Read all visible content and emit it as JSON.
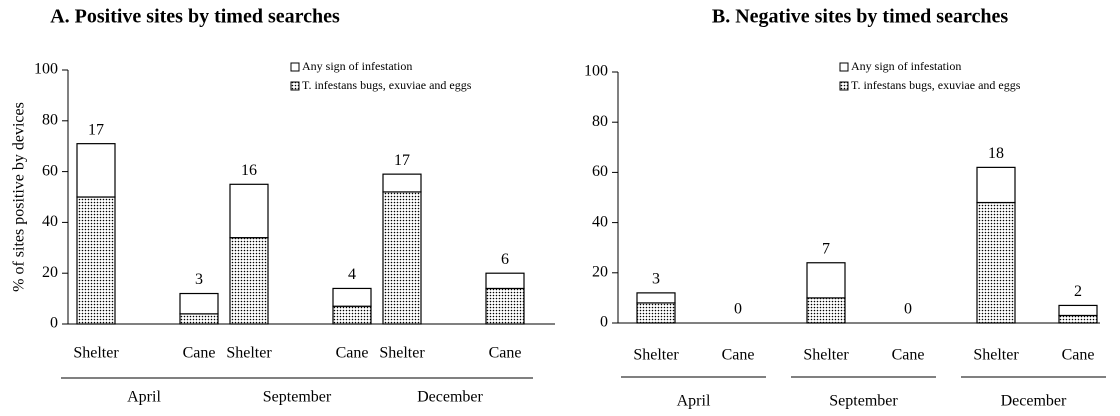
{
  "chart_data": [
    {
      "type": "stacked-bar",
      "title": "A. Positive sites by timed searches",
      "y_label": "% of sites positive by devices",
      "categories": [
        "Shelter",
        "Cane",
        "Shelter",
        "Cane",
        "Shelter",
        "Cane"
      ],
      "groups": [
        "April",
        "September",
        "December"
      ],
      "series": [
        {
          "name": "T. infestans bugs, exuviae and eggs",
          "color": "#000000",
          "values": [
            50,
            4,
            34,
            7,
            52,
            14
          ]
        },
        {
          "name": "Any sign of infestation",
          "color": "#ffffff",
          "values": [
            21,
            8,
            21,
            7,
            7,
            6
          ]
        }
      ],
      "counts": [
        17,
        3,
        16,
        4,
        17,
        6
      ],
      "ylim": [
        0,
        100
      ],
      "yticks": [
        0,
        20,
        40,
        60,
        80,
        100
      ]
    },
    {
      "type": "stacked-bar",
      "title": "B. Negative sites by timed searches",
      "categories": [
        "Shelter",
        "Cane",
        "Shelter",
        "Cane",
        "Shelter",
        "Cane"
      ],
      "groups": [
        "April",
        "September",
        "December"
      ],
      "series": [
        {
          "name": "T. infestans bugs, exuviae and eggs",
          "color": "#000000",
          "values": [
            8,
            0,
            10,
            0,
            48,
            3
          ]
        },
        {
          "name": "Any sign of infestation",
          "color": "#ffffff",
          "values": [
            4,
            0,
            14,
            0,
            14,
            4
          ]
        }
      ],
      "counts": [
        3,
        0,
        7,
        0,
        18,
        2
      ],
      "ylim": [
        0,
        100
      ],
      "yticks": [
        0,
        20,
        40,
        60,
        80,
        100
      ]
    }
  ]
}
